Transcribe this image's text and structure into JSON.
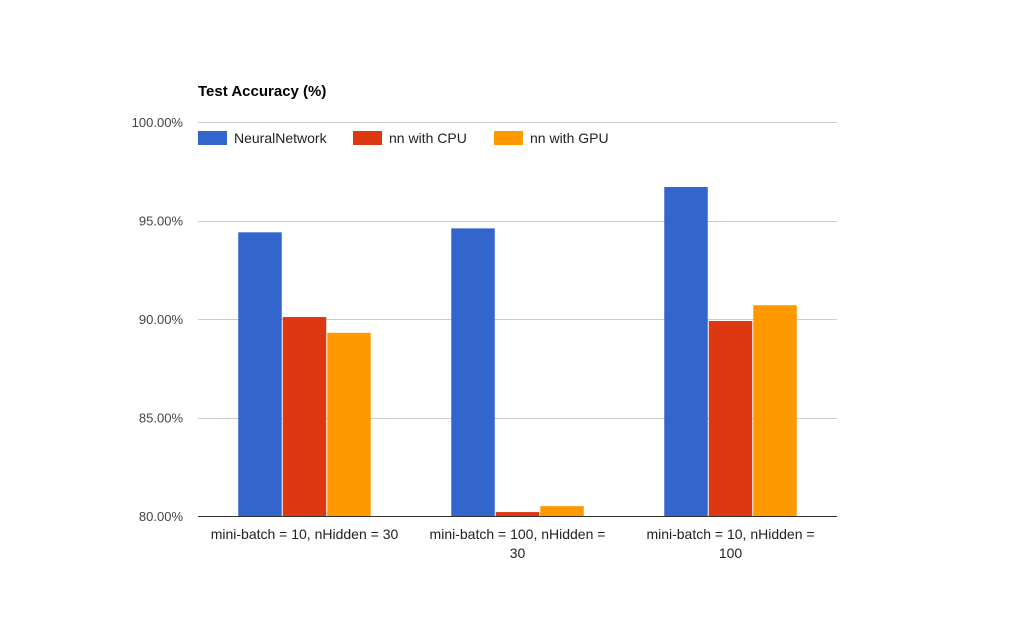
{
  "chart_data": {
    "type": "bar",
    "title": "Test Accuracy (%)",
    "xlabel": "",
    "ylabel": "",
    "categories": [
      [
        "mini-batch = 10, nHidden = 30"
      ],
      [
        "mini-batch = 100, nHidden =",
        "30"
      ],
      [
        "mini-batch = 10, nHidden =",
        "100"
      ]
    ],
    "series": [
      {
        "name": "NeuralNetwork",
        "color": "#3366cc",
        "values": [
          94.4,
          94.6,
          96.7
        ]
      },
      {
        "name": "nn with CPU",
        "color": "#dc3912",
        "values": [
          90.1,
          80.2,
          89.9
        ]
      },
      {
        "name": "nn with GPU",
        "color": "#ff9900",
        "values": [
          89.3,
          80.5,
          90.7
        ]
      }
    ],
    "ylim": [
      80,
      100
    ],
    "yticks": [
      80,
      85,
      90,
      95,
      100
    ],
    "ytick_labels": [
      "80.00%",
      "85.00%",
      "90.00%",
      "95.00%",
      "100.00%"
    ],
    "grid": true,
    "legend_position": "top-left"
  }
}
